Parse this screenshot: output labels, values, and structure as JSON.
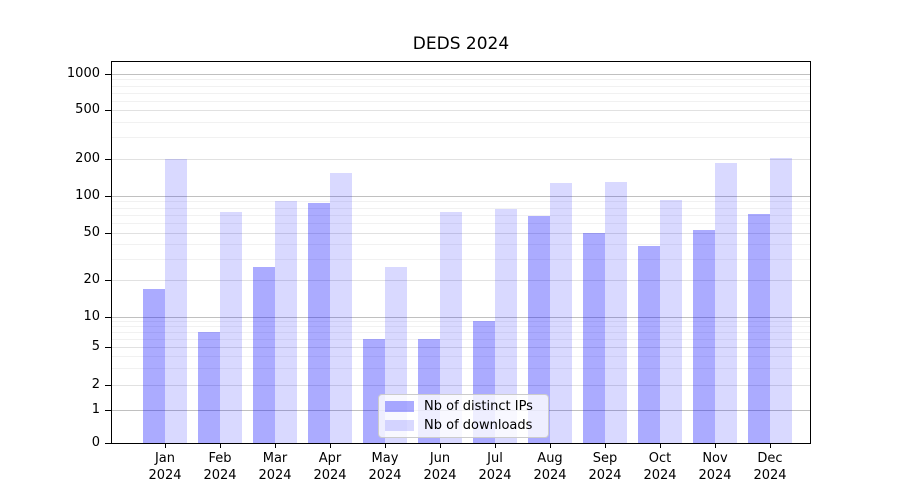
{
  "title": "DEDS 2024",
  "colors": {
    "bar_ips": "rgba(0,0,255,0.33)",
    "bar_downloads": "rgba(0,0,255,0.15)",
    "grid_major": "#c0c0c0",
    "grid_mid": "#e1e1e1",
    "grid_minor": "#f1f1f1",
    "axis": "#000000",
    "legend_border": "#cccccc"
  },
  "chart_data": {
    "type": "bar",
    "title": "DEDS 2024",
    "categories": [
      "Jan",
      "Feb",
      "Mar",
      "Apr",
      "May",
      "Jun",
      "Jul",
      "Aug",
      "Sep",
      "Oct",
      "Nov",
      "Dec"
    ],
    "year_label": "2024",
    "series": [
      {
        "name": "Nb of distinct IPs",
        "key": "ips",
        "values": [
          17,
          7,
          26,
          88,
          6,
          6,
          9,
          68,
          50,
          39,
          53,
          71
        ]
      },
      {
        "name": "Nb of downloads",
        "key": "downloads",
        "values": [
          200,
          74,
          90,
          153,
          26,
          74,
          78,
          128,
          130,
          93,
          187,
          206
        ]
      }
    ],
    "yscale": "symlog",
    "y_ticks": [
      0,
      1,
      2,
      5,
      10,
      20,
      50,
      100,
      200,
      500,
      1000
    ],
    "ylim": [
      0,
      1250
    ],
    "grid": true,
    "legend_position": "lower center"
  }
}
